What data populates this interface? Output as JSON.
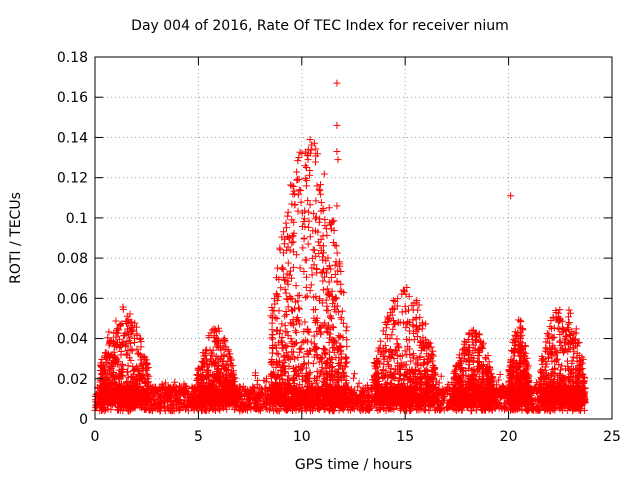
{
  "chart_data": {
    "type": "scatter",
    "title": "Day 004 of 2016, Rate Of TEC Index for receiver nium",
    "xlabel": "GPS time / hours",
    "ylabel": "ROTI / TECUs",
    "xlim": [
      0,
      25
    ],
    "ylim": [
      0,
      0.18
    ],
    "xticks": [
      "0",
      "5",
      "10",
      "15",
      "20",
      "25"
    ],
    "yticks": [
      "0",
      "0.02",
      "0.04",
      "0.06",
      "0.08",
      "0.1",
      "0.12",
      "0.14",
      "0.16",
      "0.18"
    ],
    "grid": true,
    "marker": "+",
    "color": "#ff0000",
    "x_coverage": [
      0,
      23.7
    ],
    "baseline_band": [
      0.004,
      0.016
    ],
    "bursts": [
      {
        "start": 0.2,
        "end": 2.6,
        "peak": 0.057
      },
      {
        "start": 4.9,
        "end": 6.8,
        "peak": 0.046
      },
      {
        "start": 8.5,
        "end": 12.2,
        "peak": 0.14
      },
      {
        "start": 13.5,
        "end": 16.5,
        "peak": 0.066
      },
      {
        "start": 17.3,
        "end": 19.3,
        "peak": 0.045
      },
      {
        "start": 20.0,
        "end": 21.0,
        "peak": 0.05
      },
      {
        "start": 21.5,
        "end": 23.7,
        "peak": 0.059
      }
    ],
    "outliers": [
      {
        "x": 11.7,
        "y": 0.167
      },
      {
        "x": 11.7,
        "y": 0.146
      },
      {
        "x": 11.7,
        "y": 0.133
      },
      {
        "x": 11.75,
        "y": 0.129
      },
      {
        "x": 10.4,
        "y": 0.139
      },
      {
        "x": 10.3,
        "y": 0.129
      },
      {
        "x": 20.1,
        "y": 0.111
      },
      {
        "x": 11.7,
        "y": 0.106
      },
      {
        "x": 9.5,
        "y": 0.07
      },
      {
        "x": 15.0,
        "y": 0.056
      }
    ]
  }
}
